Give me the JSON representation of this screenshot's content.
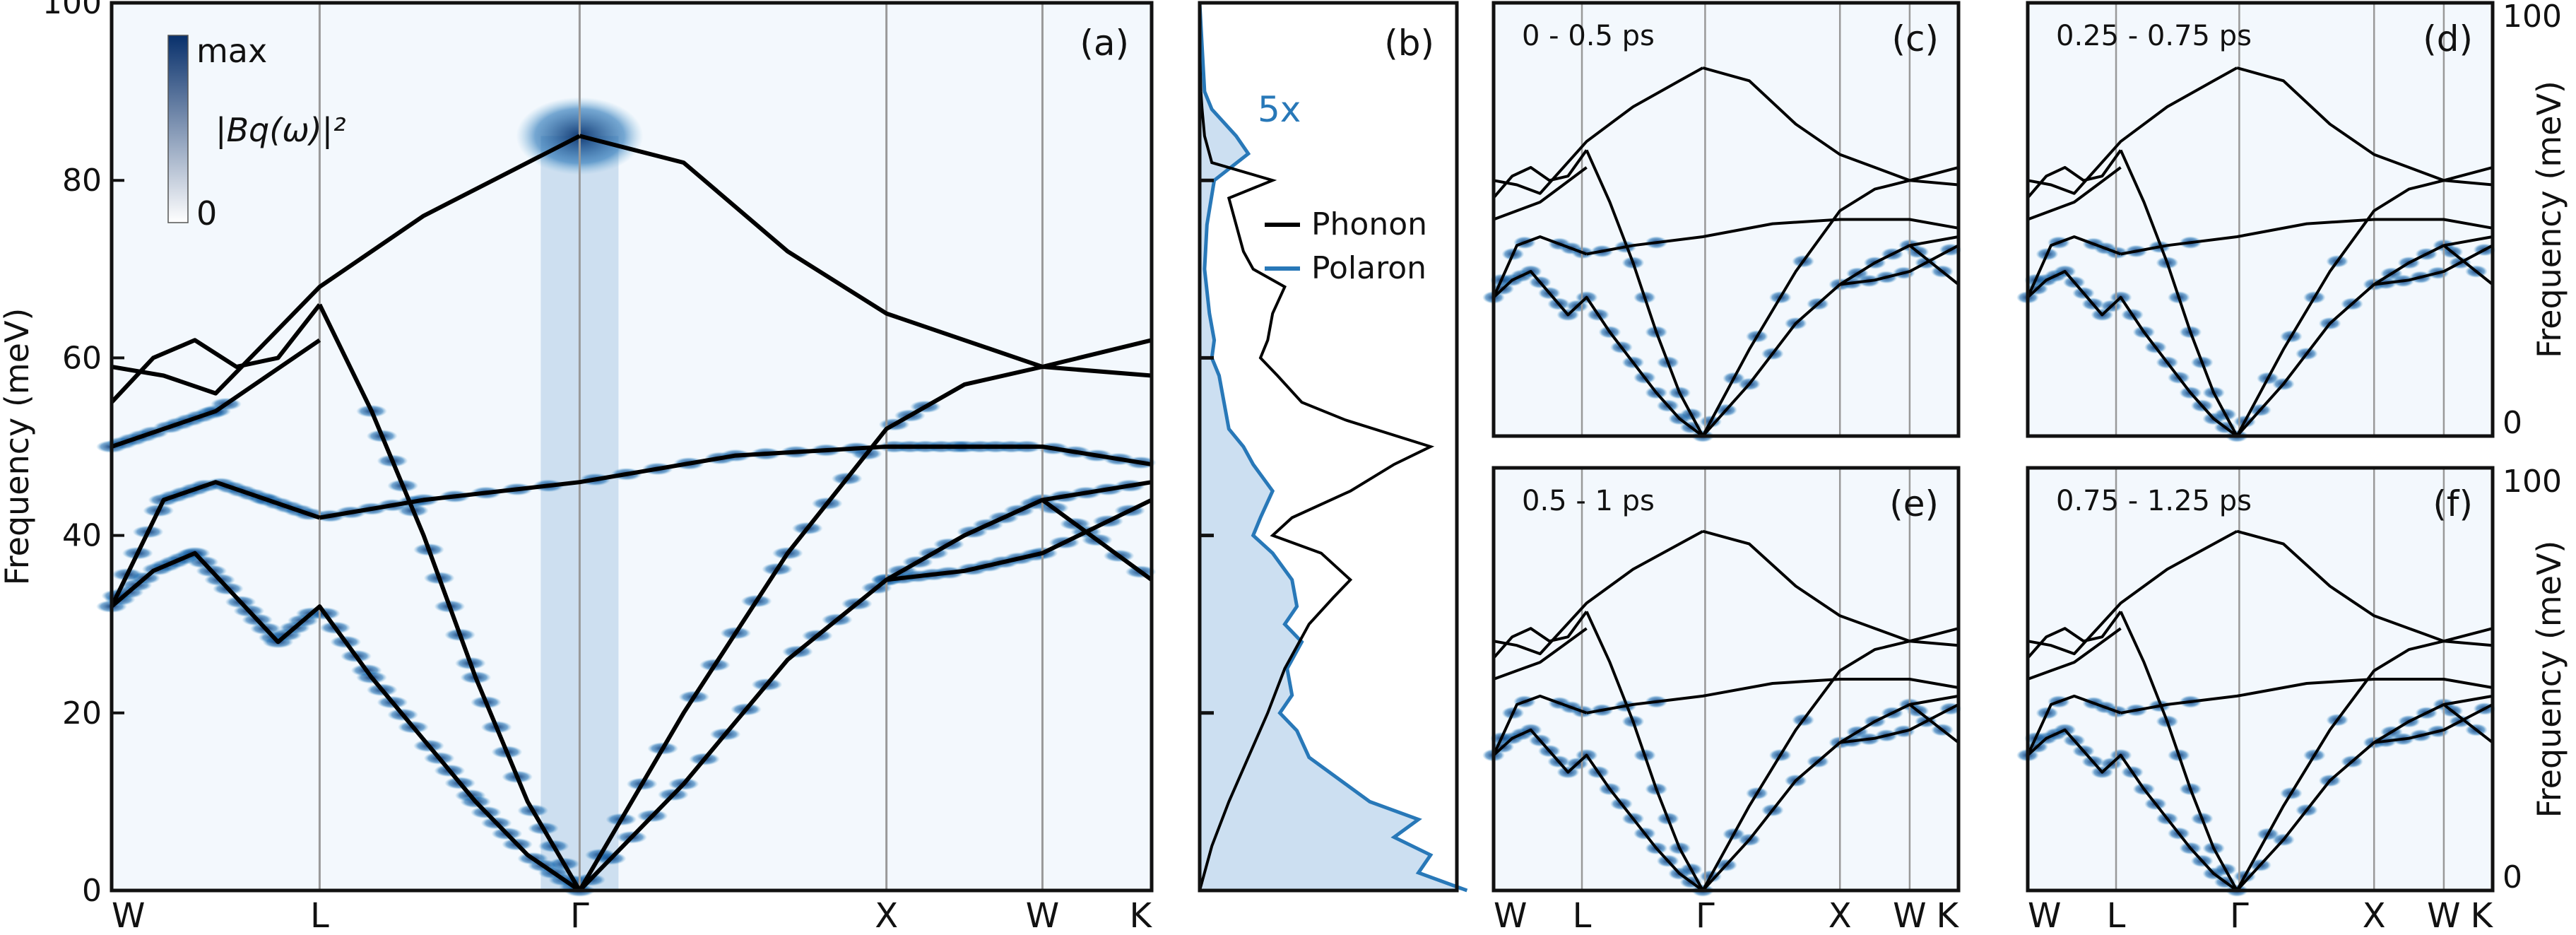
{
  "colors": {
    "background": "#f3f8fd",
    "intensity_low": "#ffffff",
    "intensity_high": "#08306b",
    "phonon": "#000000",
    "polaron": "#2878b8",
    "polaron_fill": "#c6dbef",
    "frame": "#111111",
    "hs_line": "#999999"
  },
  "colorbar": {
    "max_label": "max",
    "min_label": "0",
    "quantity_label": "|Bq(ω)|²"
  },
  "chart_data": [
    {
      "panel": "(a)",
      "type": "heatmap",
      "ylabel": "Frequency (meV)",
      "ylim": [
        0,
        100
      ],
      "yticks": [
        0,
        20,
        40,
        60,
        80,
        100
      ],
      "high_symmetry_points": [
        "W",
        "L",
        "Γ",
        "X",
        "W",
        "K"
      ],
      "high_symmetry_positions": [
        0,
        0.2,
        0.45,
        0.745,
        0.895,
        1.0
      ],
      "phonon_branches": [
        {
          "x": [
            0,
            0.04,
            0.08,
            0.12,
            0.16,
            0.2,
            0.25,
            0.3,
            0.35,
            0.4,
            0.45
          ],
          "y": [
            32,
            36,
            38,
            33,
            28,
            32,
            24,
            17,
            10,
            4,
            0
          ]
        },
        {
          "x": [
            0,
            0.05,
            0.1,
            0.15,
            0.2
          ],
          "y": [
            32,
            44,
            46,
            44,
            42
          ]
        },
        {
          "x": [
            0,
            0.04,
            0.08,
            0.12,
            0.16,
            0.2
          ],
          "y": [
            55,
            60,
            62,
            59,
            60,
            66
          ]
        },
        {
          "x": [
            0.2,
            0.25,
            0.3,
            0.35,
            0.4,
            0.45
          ],
          "y": [
            66,
            54,
            40,
            24,
            10,
            0
          ]
        },
        {
          "x": [
            0,
            0.05,
            0.1,
            0.15,
            0.2
          ],
          "y": [
            50,
            52,
            54,
            58,
            62
          ]
        },
        {
          "x": [
            0,
            0.05,
            0.1,
            0.15,
            0.2,
            0.3,
            0.4,
            0.45
          ],
          "y": [
            59,
            58,
            56,
            62,
            68,
            76,
            82,
            85
          ]
        },
        {
          "x": [
            0.45,
            0.55,
            0.65,
            0.745,
            0.82,
            0.895,
            1.0
          ],
          "y": [
            85,
            82,
            72,
            65,
            62,
            59,
            62
          ]
        },
        {
          "x": [
            0.2,
            0.3,
            0.45,
            0.6,
            0.745,
            0.82,
            0.895,
            1.0
          ],
          "y": [
            42,
            44,
            46,
            49,
            50,
            50,
            50,
            48
          ]
        },
        {
          "x": [
            0.45,
            0.55,
            0.65,
            0.745,
            0.82,
            0.895,
            1.0
          ],
          "y": [
            0,
            20,
            38,
            52,
            57,
            59,
            58
          ]
        },
        {
          "x": [
            0.45,
            0.55,
            0.65,
            0.745,
            0.82,
            0.895,
            1.0
          ],
          "y": [
            0,
            12,
            26,
            35,
            40,
            44,
            46
          ]
        },
        {
          "x": [
            0.745,
            0.82,
            0.895,
            1.0
          ],
          "y": [
            35,
            36,
            38,
            44
          ]
        },
        {
          "x": [
            0.895,
            1.0
          ],
          "y": [
            44,
            35
          ]
        }
      ]
    },
    {
      "panel": "(b)",
      "type": "line",
      "ylim": [
        0,
        100
      ],
      "annotation": "5x",
      "legend": [
        "Phonon",
        "Polaron"
      ],
      "legend_position": "top-right",
      "series": [
        {
          "name": "Phonon",
          "y": [
            0,
            5,
            10,
            15,
            20,
            25,
            30,
            33,
            35,
            38,
            40,
            42,
            45,
            48,
            50,
            53,
            55,
            58,
            60,
            62,
            65,
            68,
            70,
            72,
            75,
            78,
            80,
            82,
            85,
            88,
            90,
            95,
            100
          ],
          "value": [
            0,
            0.05,
            0.12,
            0.2,
            0.28,
            0.35,
            0.45,
            0.55,
            0.62,
            0.5,
            0.3,
            0.38,
            0.62,
            0.8,
            0.95,
            0.6,
            0.42,
            0.32,
            0.25,
            0.28,
            0.3,
            0.35,
            0.22,
            0.18,
            0.15,
            0.12,
            0.3,
            0.05,
            0.02,
            0.01,
            0.005,
            0,
            0
          ]
        },
        {
          "name": "Polaron",
          "y": [
            0,
            2,
            4,
            6,
            8,
            10,
            12,
            15,
            18,
            20,
            22,
            25,
            28,
            30,
            32,
            35,
            38,
            40,
            42,
            45,
            48,
            50,
            52,
            55,
            58,
            60,
            62,
            65,
            70,
            75,
            80,
            83,
            85,
            88,
            90,
            95,
            100
          ],
          "value": [
            1.1,
            0.9,
            0.95,
            0.8,
            0.9,
            0.7,
            0.6,
            0.45,
            0.4,
            0.33,
            0.38,
            0.36,
            0.42,
            0.35,
            0.4,
            0.38,
            0.3,
            0.22,
            0.25,
            0.3,
            0.22,
            0.18,
            0.12,
            0.1,
            0.08,
            0.05,
            0.06,
            0.04,
            0.02,
            0.03,
            0.06,
            0.2,
            0.15,
            0.05,
            0.02,
            0.01,
            0
          ]
        }
      ]
    },
    {
      "panel": "(c)",
      "type": "heatmap",
      "window": "0 - 0.5 ps",
      "high_symmetry_points": [
        "W",
        "L",
        "Γ",
        "X",
        "W",
        "K"
      ]
    },
    {
      "panel": "(d)",
      "type": "heatmap",
      "window": "0.25 - 0.75 ps",
      "ylabel": "Frequency (meV)",
      "yticks": [
        0,
        100
      ],
      "high_symmetry_points": [
        "W",
        "L",
        "Γ",
        "X",
        "W",
        "K"
      ]
    },
    {
      "panel": "(e)",
      "type": "heatmap",
      "window": "0.5 - 1 ps",
      "high_symmetry_points": [
        "W",
        "L",
        "Γ",
        "X",
        "W",
        "K"
      ]
    },
    {
      "panel": "(f)",
      "type": "heatmap",
      "window": "0.75 - 1.25 ps",
      "ylabel": "Frequency (meV)",
      "yticks": [
        0,
        100
      ],
      "high_symmetry_points": [
        "W",
        "L",
        "Γ",
        "X",
        "W",
        "K"
      ]
    }
  ]
}
